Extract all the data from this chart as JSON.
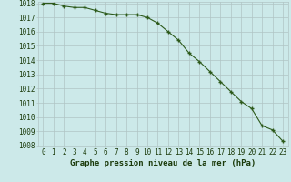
{
  "x": [
    0,
    1,
    2,
    3,
    4,
    5,
    6,
    7,
    8,
    9,
    10,
    11,
    12,
    13,
    14,
    15,
    16,
    17,
    18,
    19,
    20,
    21,
    22,
    23
  ],
  "y": [
    1018.0,
    1018.0,
    1017.8,
    1017.7,
    1017.7,
    1017.5,
    1017.3,
    1017.2,
    1017.2,
    1017.2,
    1017.0,
    1016.6,
    1016.0,
    1015.4,
    1014.5,
    1013.9,
    1013.2,
    1012.5,
    1011.8,
    1011.1,
    1010.6,
    1009.4,
    1009.1,
    1008.3
  ],
  "line_color": "#2d5a1b",
  "marker": "+",
  "marker_color": "#2d5a1b",
  "bg_color": "#cce9e9",
  "grid_color": "#b0c4c4",
  "text_color": "#1a3a0a",
  "xlabel": "Graphe pression niveau de la mer (hPa)",
  "ylim_min": 1008,
  "ylim_max": 1018,
  "xlim_min": 0,
  "xlim_max": 23,
  "ytick_step": 1,
  "xtick_step": 1,
  "xlabel_fontsize": 6.5,
  "tick_fontsize": 5.5,
  "linewidth": 0.8,
  "markersize": 3.5
}
